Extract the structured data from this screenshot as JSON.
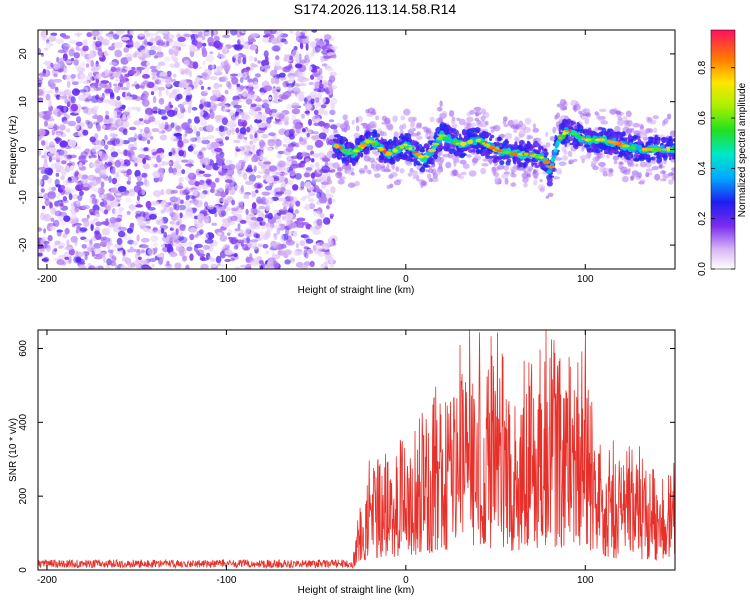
{
  "title": "S174.2026.113.14.58.R14",
  "chart_data": [
    {
      "type": "heatmap",
      "xlabel": "Height of straight line (km)",
      "ylabel": "Frequency (Hz)",
      "xlim": [
        -205,
        150
      ],
      "ylim": [
        -25,
        25
      ],
      "xticks": [
        -200,
        -100,
        0,
        100
      ],
      "yticks": [
        -20,
        -10,
        0,
        10,
        20
      ],
      "noise_region_km": [
        -205,
        -40
      ],
      "ridge": {
        "x": [
          -40,
          -30,
          -20,
          -10,
          0,
          10,
          15,
          20,
          30,
          40,
          50,
          60,
          70,
          78,
          80,
          85,
          90,
          100,
          110,
          120,
          130,
          150
        ],
        "y": [
          1,
          -1,
          2,
          -1,
          1,
          -2,
          0,
          3,
          1,
          2,
          0,
          -1,
          -1,
          -2,
          -5,
          2,
          4,
          2,
          2,
          1,
          0,
          0
        ]
      },
      "colorbar": {
        "label": "Normalized spectral amplitude",
        "ticks": [
          0.0,
          0.2,
          0.4,
          0.6,
          0.8
        ],
        "range": [
          0.0,
          0.95
        ]
      }
    },
    {
      "type": "line",
      "xlabel": "Height of straight line (km)",
      "ylabel": "SNR (10 * v/v)",
      "xlim": [
        -205,
        150
      ],
      "ylim": [
        0,
        650
      ],
      "xticks": [
        -200,
        -100,
        0,
        100
      ],
      "yticks": [
        0,
        200,
        400,
        600
      ],
      "series": [
        {
          "name": "SNR",
          "color": "#e8302a",
          "x": [
            -205,
            -30,
            -25,
            -15,
            0,
            20,
            40,
            60,
            80,
            100,
            110,
            120,
            135,
            150
          ],
          "y": [
            15,
            15,
            180,
            250,
            300,
            420,
            480,
            420,
            520,
            470,
            280,
            240,
            230,
            220
          ]
        }
      ]
    }
  ]
}
